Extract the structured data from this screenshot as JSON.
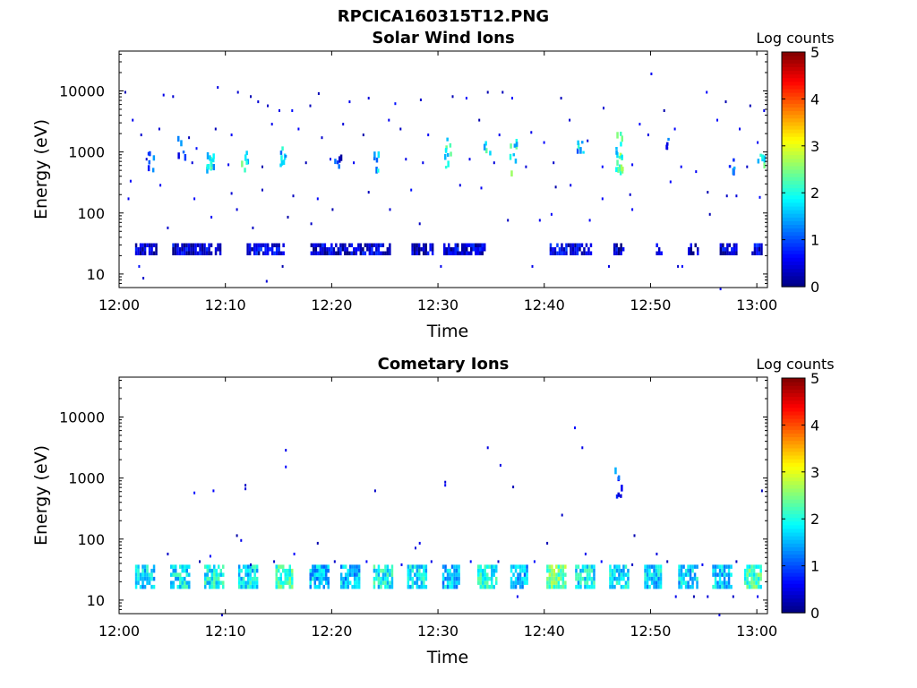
{
  "figure": {
    "title": "RPCICA160315T12.PNG"
  },
  "colormap": {
    "name": "jet",
    "stops": [
      "#00007f",
      "#0000ff",
      "#007fff",
      "#00ffff",
      "#7fff7f",
      "#ffff00",
      "#ff7f00",
      "#ff0000",
      "#7f0000"
    ]
  },
  "chart_data": [
    {
      "type": "heatmap",
      "title": "Solar Wind Ions",
      "xlabel": "Time",
      "ylabel": "Energy (eV)",
      "x_ticks": [
        "12:00",
        "12:10",
        "12:20",
        "12:30",
        "12:40",
        "12:50",
        "13:00"
      ],
      "y_ticks": [
        "10",
        "100",
        "1000",
        "10000"
      ],
      "y_scale": "log",
      "ylim": [
        6,
        45000
      ],
      "xlim_minutes": [
        0,
        61
      ],
      "colorbar": {
        "label": "Log counts",
        "ticks": [
          "0",
          "1",
          "2",
          "3",
          "4",
          "5"
        ],
        "range": [
          0,
          5
        ]
      },
      "bands": [
        {
          "x_start": 1.5,
          "x_end": 3.5,
          "e_low": 22,
          "e_high": 32,
          "level": 0.3
        },
        {
          "x_start": 5.0,
          "x_end": 9.5,
          "e_low": 22,
          "e_high": 32,
          "level": 0.4
        },
        {
          "x_start": 12.0,
          "x_end": 15.5,
          "e_low": 22,
          "e_high": 32,
          "level": 0.5
        },
        {
          "x_start": 18.0,
          "x_end": 25.5,
          "e_low": 22,
          "e_high": 32,
          "level": 0.4
        },
        {
          "x_start": 27.5,
          "x_end": 29.5,
          "e_low": 22,
          "e_high": 32,
          "level": 0.3
        },
        {
          "x_start": 30.5,
          "x_end": 34.5,
          "e_low": 22,
          "e_high": 32,
          "level": 0.4
        },
        {
          "x_start": 40.5,
          "x_end": 44.5,
          "e_low": 22,
          "e_high": 32,
          "level": 0.5
        },
        {
          "x_start": 46.5,
          "x_end": 47.5,
          "e_low": 22,
          "e_high": 32,
          "level": 0.4
        },
        {
          "x_start": 50.5,
          "x_end": 51.0,
          "e_low": 22,
          "e_high": 32,
          "level": 0.3
        },
        {
          "x_start": 53.5,
          "x_end": 54.5,
          "e_low": 22,
          "e_high": 32,
          "level": 0.3
        },
        {
          "x_start": 56.5,
          "x_end": 58.0,
          "e_low": 22,
          "e_high": 32,
          "level": 0.4
        },
        {
          "x_start": 59.5,
          "x_end": 60.5,
          "e_low": 22,
          "e_high": 32,
          "level": 0.5
        }
      ],
      "clusters": [
        {
          "x": 3.0,
          "e": 750,
          "count": 6,
          "level": 1.2
        },
        {
          "x": 5.8,
          "e": 1300,
          "count": 5,
          "level": 0.8
        },
        {
          "x": 8.5,
          "e": 700,
          "count": 14,
          "level": 1.8
        },
        {
          "x": 11.8,
          "e": 750,
          "count": 6,
          "level": 2.0
        },
        {
          "x": 15.3,
          "e": 900,
          "count": 8,
          "level": 1.6
        },
        {
          "x": 20.5,
          "e": 800,
          "count": 5,
          "level": 0.7
        },
        {
          "x": 24.2,
          "e": 750,
          "count": 6,
          "level": 1.7
        },
        {
          "x": 30.8,
          "e": 1400,
          "count": 6,
          "level": 1.9
        },
        {
          "x": 30.8,
          "e": 700,
          "count": 4,
          "level": 1.6
        },
        {
          "x": 34.5,
          "e": 1300,
          "count": 4,
          "level": 1.8
        },
        {
          "x": 37.0,
          "e": 1200,
          "count": 5,
          "level": 1.9
        },
        {
          "x": 37.0,
          "e": 700,
          "count": 4,
          "level": 2.1
        },
        {
          "x": 43.3,
          "e": 1300,
          "count": 6,
          "level": 1.6
        },
        {
          "x": 47.0,
          "e": 700,
          "count": 16,
          "level": 2.3
        },
        {
          "x": 47.0,
          "e": 1500,
          "count": 6,
          "level": 2.0
        },
        {
          "x": 51.5,
          "e": 1300,
          "count": 4,
          "level": 0.9
        },
        {
          "x": 57.5,
          "e": 750,
          "count": 5,
          "level": 1.2
        },
        {
          "x": 60.3,
          "e": 800,
          "count": 6,
          "level": 1.9
        }
      ],
      "points": [
        [
          0.5,
          10000
        ],
        [
          4.1,
          9000
        ],
        [
          5.0,
          8500
        ],
        [
          9.2,
          12000
        ],
        [
          11.1,
          10000
        ],
        [
          12.3,
          8500
        ],
        [
          13.0,
          7000
        ],
        [
          13.9,
          6000
        ],
        [
          15.0,
          5000
        ],
        [
          16.2,
          5000
        ],
        [
          17.9,
          6000
        ],
        [
          18.7,
          9500
        ],
        [
          21.6,
          7000
        ],
        [
          23.4,
          8000
        ],
        [
          25.9,
          6500
        ],
        [
          28.3,
          7500
        ],
        [
          31.3,
          8500
        ],
        [
          32.6,
          8000
        ],
        [
          34.6,
          10000
        ],
        [
          36.0,
          10000
        ],
        [
          36.9,
          8000
        ],
        [
          41.5,
          8000
        ],
        [
          45.5,
          5500
        ],
        [
          48.9,
          3000
        ],
        [
          50.0,
          20000
        ],
        [
          51.2,
          5000
        ],
        [
          55.2,
          10000
        ],
        [
          57.0,
          7000
        ],
        [
          59.3,
          6000
        ],
        [
          60.6,
          5000
        ],
        [
          1.2,
          3500
        ],
        [
          2.0,
          2000
        ],
        [
          3.7,
          2500
        ],
        [
          6.5,
          1800
        ],
        [
          7.2,
          1200
        ],
        [
          9.0,
          2500
        ],
        [
          10.5,
          2000
        ],
        [
          14.3,
          3000
        ],
        [
          16.8,
          2500
        ],
        [
          19.0,
          1800
        ],
        [
          21.0,
          3000
        ],
        [
          22.9,
          2000
        ],
        [
          25.3,
          3500
        ],
        [
          26.4,
          2500
        ],
        [
          29.0,
          2000
        ],
        [
          33.8,
          3500
        ],
        [
          35.7,
          2000
        ],
        [
          38.7,
          2200
        ],
        [
          39.9,
          1500
        ],
        [
          42.3,
          3500
        ],
        [
          44.0,
          1600
        ],
        [
          49.7,
          2000
        ],
        [
          52.2,
          2500
        ],
        [
          56.2,
          3500
        ],
        [
          58.3,
          2500
        ],
        [
          60.0,
          1500
        ],
        [
          2.5,
          800
        ],
        [
          6.8,
          700
        ],
        [
          10.2,
          650
        ],
        [
          13.4,
          600
        ],
        [
          17.5,
          700
        ],
        [
          19.8,
          800
        ],
        [
          22.0,
          700
        ],
        [
          26.9,
          800
        ],
        [
          28.5,
          700
        ],
        [
          32.9,
          800
        ],
        [
          35.2,
          700
        ],
        [
          38.2,
          600
        ],
        [
          40.8,
          700
        ],
        [
          45.4,
          600
        ],
        [
          48.2,
          650
        ],
        [
          52.8,
          600
        ],
        [
          54.2,
          500
        ],
        [
          59.0,
          600
        ],
        [
          1.0,
          350
        ],
        [
          3.8,
          300
        ],
        [
          7.0,
          180
        ],
        [
          10.5,
          220
        ],
        [
          13.4,
          250
        ],
        [
          16.3,
          200
        ],
        [
          18.6,
          180
        ],
        [
          23.4,
          230
        ],
        [
          27.4,
          250
        ],
        [
          32.0,
          300
        ],
        [
          34.0,
          270
        ],
        [
          41.0,
          280
        ],
        [
          42.4,
          300
        ],
        [
          45.4,
          180
        ],
        [
          48.0,
          210
        ],
        [
          51.8,
          340
        ],
        [
          55.3,
          230
        ],
        [
          57.1,
          200
        ],
        [
          60.2,
          190
        ],
        [
          0.8,
          180
        ],
        [
          4.5,
          60
        ],
        [
          8.6,
          90
        ],
        [
          11.0,
          120
        ],
        [
          12.5,
          60
        ],
        [
          15.8,
          90
        ],
        [
          18.0,
          70
        ],
        [
          20.0,
          120
        ],
        [
          25.4,
          120
        ],
        [
          28.2,
          70
        ],
        [
          36.5,
          80
        ],
        [
          39.5,
          80
        ],
        [
          40.6,
          100
        ],
        [
          44.2,
          80
        ],
        [
          48.2,
          120
        ],
        [
          55.5,
          100
        ],
        [
          58.0,
          200
        ],
        [
          1.8,
          14
        ],
        [
          2.2,
          9
        ],
        [
          13.8,
          8
        ],
        [
          15.3,
          14
        ],
        [
          30.2,
          14
        ],
        [
          38.8,
          14
        ],
        [
          46.0,
          14
        ],
        [
          52.5,
          14
        ],
        [
          52.9,
          14
        ],
        [
          56.5,
          6
        ]
      ]
    },
    {
      "type": "heatmap",
      "title": "Cometary Ions",
      "xlabel": "Time",
      "ylabel": "Energy (eV)",
      "x_ticks": [
        "12:00",
        "12:10",
        "12:20",
        "12:30",
        "12:40",
        "12:50",
        "13:00"
      ],
      "y_ticks": [
        "10",
        "100",
        "1000",
        "10000"
      ],
      "y_scale": "log",
      "ylim": [
        6,
        45000
      ],
      "xlim_minutes": [
        0,
        61
      ],
      "colorbar": {
        "label": "Log counts",
        "ticks": [
          "0",
          "1",
          "2",
          "3",
          "4",
          "5"
        ],
        "range": [
          0,
          5
        ]
      },
      "bands": [
        {
          "x_start": 1.5,
          "x_end": 3.2,
          "e_low": 17,
          "e_high": 38,
          "level": 1.7
        },
        {
          "x_start": 4.8,
          "x_end": 6.5,
          "e_low": 17,
          "e_high": 38,
          "level": 1.8
        },
        {
          "x_start": 8.0,
          "x_end": 9.8,
          "e_low": 17,
          "e_high": 38,
          "level": 1.9
        },
        {
          "x_start": 11.2,
          "x_end": 12.9,
          "e_low": 17,
          "e_high": 38,
          "level": 1.8
        },
        {
          "x_start": 14.7,
          "x_end": 16.2,
          "e_low": 17,
          "e_high": 38,
          "level": 2.1
        },
        {
          "x_start": 17.9,
          "x_end": 19.6,
          "e_low": 17,
          "e_high": 38,
          "level": 1.6
        },
        {
          "x_start": 20.8,
          "x_end": 22.5,
          "e_low": 17,
          "e_high": 38,
          "level": 1.6
        },
        {
          "x_start": 23.9,
          "x_end": 25.7,
          "e_low": 17,
          "e_high": 38,
          "level": 1.9
        },
        {
          "x_start": 27.1,
          "x_end": 28.8,
          "e_low": 17,
          "e_high": 38,
          "level": 1.8
        },
        {
          "x_start": 30.4,
          "x_end": 32.0,
          "e_low": 17,
          "e_high": 38,
          "level": 1.6
        },
        {
          "x_start": 33.7,
          "x_end": 35.4,
          "e_low": 17,
          "e_high": 38,
          "level": 1.9
        },
        {
          "x_start": 36.8,
          "x_end": 38.4,
          "e_low": 17,
          "e_high": 38,
          "level": 1.5
        },
        {
          "x_start": 40.2,
          "x_end": 41.9,
          "e_low": 17,
          "e_high": 38,
          "level": 2.4
        },
        {
          "x_start": 42.9,
          "x_end": 44.6,
          "e_low": 17,
          "e_high": 38,
          "level": 1.8
        },
        {
          "x_start": 46.1,
          "x_end": 47.8,
          "e_low": 17,
          "e_high": 38,
          "level": 1.8
        },
        {
          "x_start": 49.4,
          "x_end": 51.0,
          "e_low": 17,
          "e_high": 38,
          "level": 1.7
        },
        {
          "x_start": 52.6,
          "x_end": 54.3,
          "e_low": 17,
          "e_high": 38,
          "level": 1.7
        },
        {
          "x_start": 55.8,
          "x_end": 57.5,
          "e_low": 17,
          "e_high": 38,
          "level": 1.6
        },
        {
          "x_start": 58.8,
          "x_end": 60.3,
          "e_low": 17,
          "e_high": 38,
          "level": 2.2
        }
      ],
      "clusters": [
        {
          "x": 47.0,
          "e": 750,
          "count": 5,
          "level": 0.8
        },
        {
          "x": 46.9,
          "e": 1600,
          "count": 2,
          "level": 1.0
        }
      ],
      "points": [
        [
          7.0,
          600
        ],
        [
          8.8,
          650
        ],
        [
          11.8,
          700
        ],
        [
          11.8,
          800
        ],
        [
          11.0,
          120
        ],
        [
          11.4,
          100
        ],
        [
          15.6,
          3000
        ],
        [
          15.6,
          1600
        ],
        [
          18.6,
          90
        ],
        [
          24.0,
          650
        ],
        [
          27.8,
          75
        ],
        [
          28.2,
          90
        ],
        [
          30.6,
          800
        ],
        [
          30.6,
          900
        ],
        [
          34.6,
          3300
        ],
        [
          35.8,
          1700
        ],
        [
          37.0,
          750
        ],
        [
          40.2,
          90
        ],
        [
          41.6,
          260
        ],
        [
          42.8,
          7000
        ],
        [
          43.5,
          3300
        ],
        [
          43.8,
          60
        ],
        [
          48.4,
          120
        ],
        [
          50.5,
          60
        ],
        [
          4.5,
          60
        ],
        [
          7.5,
          45
        ],
        [
          8.5,
          55
        ],
        [
          12.3,
          40
        ],
        [
          14.5,
          45
        ],
        [
          16.4,
          60
        ],
        [
          20.2,
          45
        ],
        [
          23.2,
          45
        ],
        [
          26.5,
          40
        ],
        [
          29.3,
          45
        ],
        [
          33.0,
          45
        ],
        [
          35.6,
          45
        ],
        [
          39.0,
          45
        ],
        [
          45.3,
          45
        ],
        [
          48.2,
          40
        ],
        [
          51.5,
          45
        ],
        [
          54.8,
          40
        ],
        [
          58.0,
          45
        ],
        [
          60.4,
          650
        ],
        [
          37.4,
          12
        ],
        [
          52.3,
          12
        ],
        [
          54.0,
          12
        ],
        [
          55.3,
          12
        ],
        [
          57.7,
          12
        ],
        [
          60.0,
          12
        ],
        [
          9.6,
          6
        ],
        [
          56.4,
          6
        ]
      ]
    }
  ]
}
